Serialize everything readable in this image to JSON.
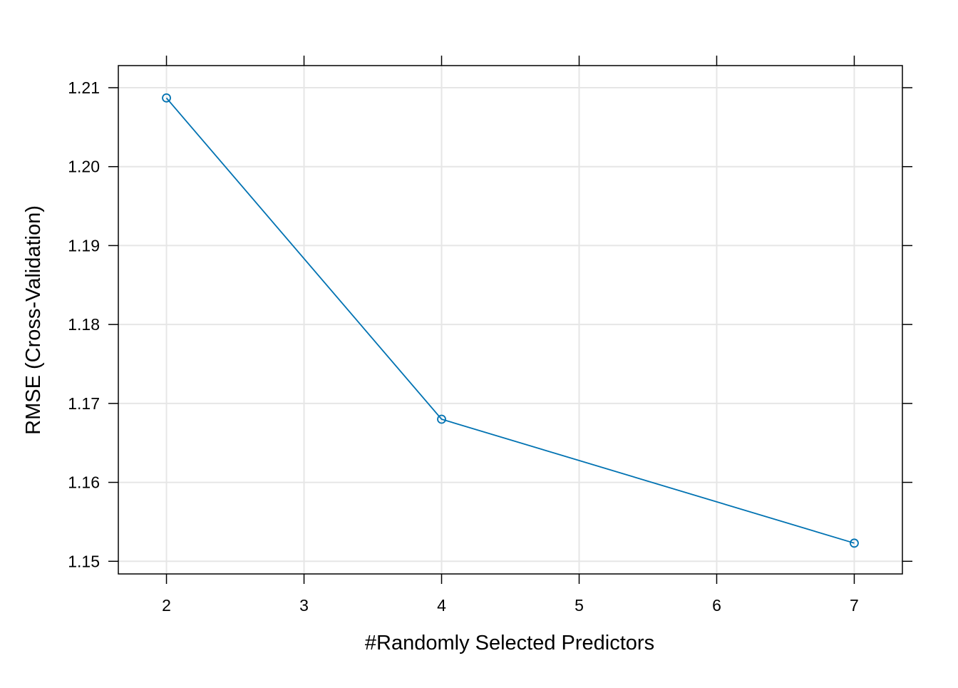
{
  "chart_data": {
    "type": "line",
    "xlabel": "#Randomly Selected Predictors",
    "ylabel": "RMSE (Cross-Validation)",
    "x_ticks": [
      2,
      3,
      4,
      5,
      6,
      7
    ],
    "y_ticks": [
      1.15,
      1.16,
      1.17,
      1.18,
      1.19,
      1.2,
      1.21
    ],
    "y_tick_labels": [
      "1.15",
      "1.16",
      "1.17",
      "1.18",
      "1.19",
      "1.20",
      "1.21"
    ],
    "xlim": [
      1.65,
      7.35
    ],
    "ylim": [
      1.1484,
      1.2128
    ],
    "grid": true,
    "series": [
      {
        "x": [
          2,
          4,
          7
        ],
        "y": [
          1.2087,
          1.168,
          1.1523
        ],
        "color": "#0072b2",
        "marker": "open-circle"
      }
    ]
  }
}
